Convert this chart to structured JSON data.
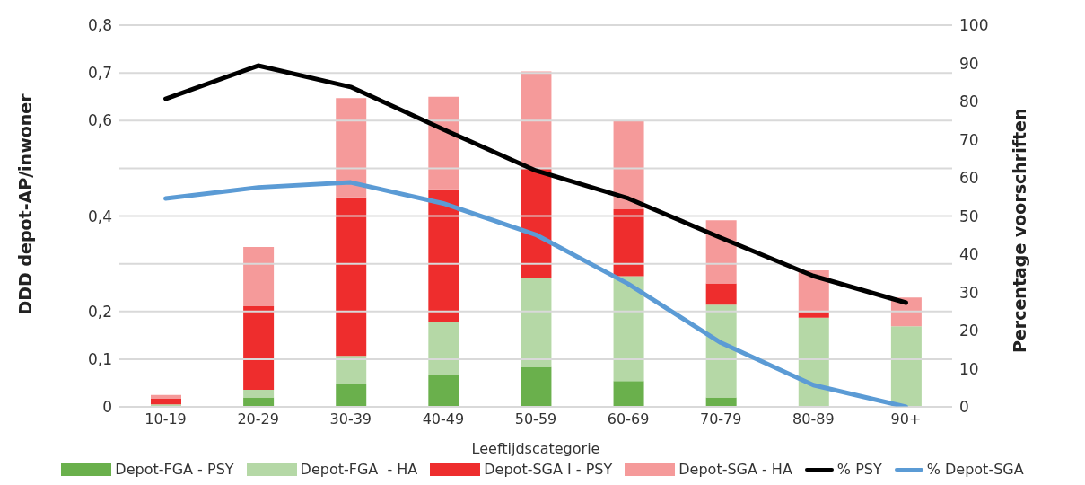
{
  "chart_data": {
    "type": "bar",
    "stacked": true,
    "xlabel": "Leeftijdscategorie",
    "ylabel": "DDD depot-AP/inwoner",
    "y2label": "Percentage voorschriften",
    "categories": [
      "10-19",
      "20-29",
      "30-39",
      "40-49",
      "50-59",
      "60-69",
      "70-79",
      "80-89",
      "90+"
    ],
    "series": [
      {
        "name": "Depot-FGA - PSY",
        "color": "#6ab04c",
        "values": [
          0,
          0.02,
          0.047,
          0.068,
          0.084,
          0.054,
          0.02,
          0,
          0
        ]
      },
      {
        "name": "Depot-FGA  - HA",
        "color": "#b5d8a6",
        "values": [
          0.005,
          0.016,
          0.06,
          0.109,
          0.186,
          0.22,
          0.194,
          0.187,
          0.169
        ]
      },
      {
        "name": "Depot-SGA I - PSY",
        "color": "#ee2d2d",
        "values": [
          0.012,
          0.175,
          0.332,
          0.279,
          0.231,
          0.14,
          0.045,
          0.012,
          0
        ]
      },
      {
        "name": "Depot-SGA - HA",
        "color": "#f59a9a",
        "values": [
          0.008,
          0.124,
          0.208,
          0.194,
          0.202,
          0.186,
          0.132,
          0.087,
          0.06
        ]
      },
      {
        "name": "% PSY",
        "type": "line",
        "axis": "y2",
        "color": "#000000",
        "values": [
          80.7,
          89.4,
          83.8,
          72.7,
          61.9,
          54.6,
          44.3,
          34.3,
          27.3
        ]
      },
      {
        "name": "% Depot-SGA",
        "type": "line",
        "axis": "y2",
        "color": "#5b9bd5",
        "values": [
          54.6,
          57.5,
          58.8,
          53.3,
          45.1,
          32.2,
          16.8,
          5.7,
          0
        ]
      }
    ],
    "ylim": [
      0,
      0.8
    ],
    "yticks": [
      0,
      {
        "value": 0.1,
        "label": "0,1"
      },
      {
        "value": 0.2,
        "label": "0,2"
      },
      {
        "value": 0.3,
        "label": null
      },
      {
        "value": 0.4,
        "label": "0,4"
      },
      {
        "value": 0.5,
        "label": null
      },
      {
        "value": 0.6,
        "label": "0,6"
      },
      {
        "value": 0.7,
        "label": "0,7"
      },
      {
        "value": 0.8,
        "label": "0,8"
      }
    ],
    "y2lim": [
      0,
      100
    ],
    "y2ticks": [
      0,
      10,
      20,
      30,
      40,
      50,
      60,
      70,
      80,
      90,
      100
    ],
    "grid": "y",
    "legend": "bottom",
    "marker": "none",
    "line_style": "solid"
  }
}
